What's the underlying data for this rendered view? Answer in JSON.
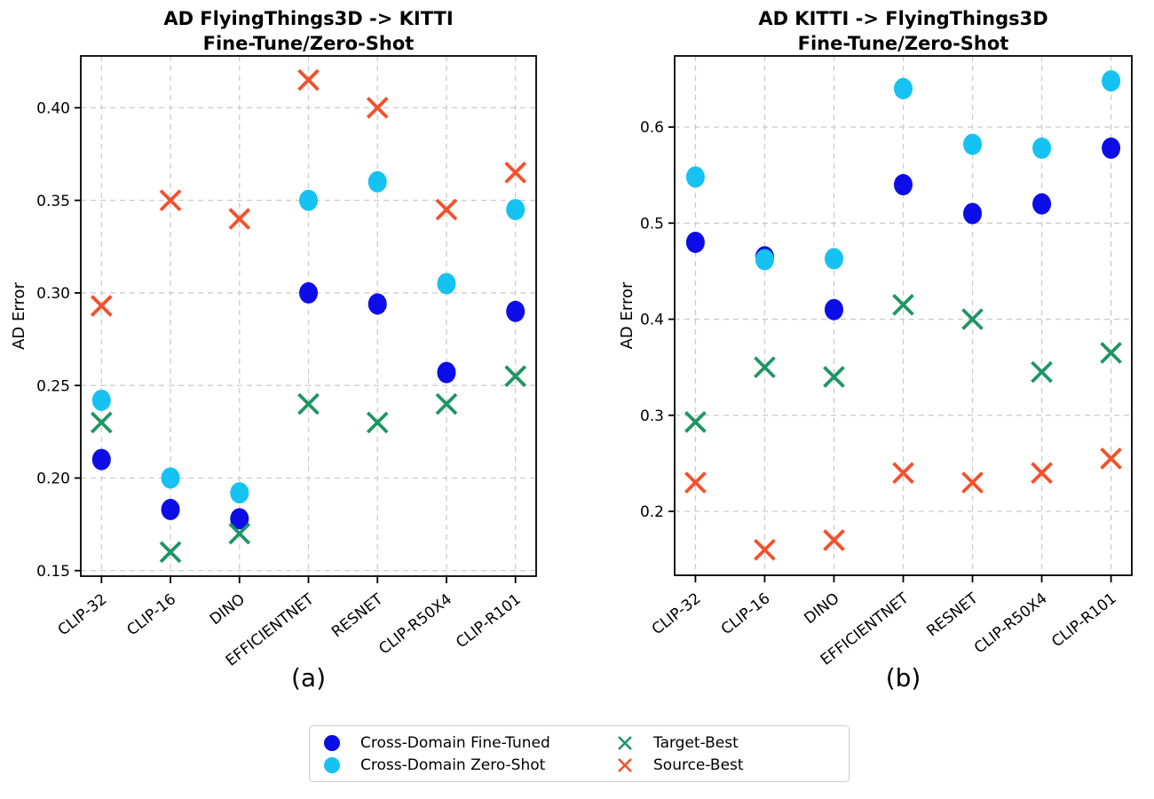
{
  "colors": {
    "fine_tuned": "#0d0de8",
    "zero_shot": "#16c2f2",
    "target_best": "#1e9566",
    "source_best": "#f3512b",
    "grid": "#cccccc",
    "spine": "#000000",
    "text": "#000000"
  },
  "legend": {
    "items": [
      {
        "label": "Cross-Domain Fine-Tuned",
        "marker": "circle",
        "color_key": "fine_tuned"
      },
      {
        "label": "Cross-Domain Zero-Shot",
        "marker": "circle",
        "color_key": "zero_shot"
      },
      {
        "label": "Target-Best",
        "marker": "x",
        "color_key": "target_best"
      },
      {
        "label": "Source-Best",
        "marker": "x",
        "color_key": "source_best"
      }
    ]
  },
  "chart_data": [
    {
      "type": "scatter",
      "title": "AD FlyingThings3D -> KITTI\nFine-Tune/Zero-Shot",
      "ylabel": "AD Error",
      "caption": "(a)",
      "grid": true,
      "categories": [
        "CLIP-32",
        "CLIP-16",
        "DINO",
        "EFFICIENTNET",
        "RESNET",
        "CLIP-R50X4",
        "CLIP-R101"
      ],
      "ylim": [
        0.147,
        0.428
      ],
      "yticks": [
        0.15,
        0.2,
        0.25,
        0.3,
        0.35,
        0.4
      ],
      "ytick_labels": [
        "0.15",
        "0.20",
        "0.25",
        "0.30",
        "0.35",
        "0.40"
      ],
      "series": [
        {
          "name": "Cross-Domain Fine-Tuned",
          "marker": "circle",
          "color_key": "fine_tuned",
          "values": [
            0.21,
            0.183,
            0.178,
            0.3,
            0.294,
            0.257,
            0.29
          ]
        },
        {
          "name": "Cross-Domain Zero-Shot",
          "marker": "circle",
          "color_key": "zero_shot",
          "values": [
            0.242,
            0.2,
            0.192,
            0.35,
            0.36,
            0.305,
            0.345
          ]
        },
        {
          "name": "Target-Best",
          "marker": "x",
          "color_key": "target_best",
          "values": [
            0.23,
            0.16,
            0.17,
            0.24,
            0.23,
            0.24,
            0.255
          ]
        },
        {
          "name": "Source-Best",
          "marker": "x",
          "color_key": "source_best",
          "values": [
            0.293,
            0.35,
            0.34,
            0.415,
            0.4,
            0.345,
            0.365
          ]
        }
      ]
    },
    {
      "type": "scatter",
      "title": "AD KITTI -> FlyingThings3D\nFine-Tune/Zero-Shot",
      "ylabel": "AD Error",
      "caption": "(b)",
      "grid": true,
      "categories": [
        "CLIP-32",
        "CLIP-16",
        "DINO",
        "EFFICIENTNET",
        "RESNET",
        "CLIP-R50X4",
        "CLIP-R101"
      ],
      "ylim": [
        0.1335,
        0.674
      ],
      "yticks": [
        0.2,
        0.3,
        0.4,
        0.5,
        0.6
      ],
      "ytick_labels": [
        "0.2",
        "0.3",
        "0.4",
        "0.5",
        "0.6"
      ],
      "series": [
        {
          "name": "Cross-Domain Fine-Tuned",
          "marker": "circle",
          "color_key": "fine_tuned",
          "values": [
            0.48,
            0.465,
            0.41,
            0.54,
            0.51,
            0.52,
            0.578
          ]
        },
        {
          "name": "Cross-Domain Zero-Shot",
          "marker": "circle",
          "color_key": "zero_shot",
          "values": [
            0.548,
            0.462,
            0.463,
            0.64,
            0.582,
            0.578,
            0.648
          ]
        },
        {
          "name": "Target-Best",
          "marker": "x",
          "color_key": "target_best",
          "values": [
            0.293,
            0.35,
            0.34,
            0.415,
            0.4,
            0.345,
            0.365
          ]
        },
        {
          "name": "Source-Best",
          "marker": "x",
          "color_key": "source_best",
          "values": [
            0.23,
            0.16,
            0.17,
            0.24,
            0.23,
            0.24,
            0.255
          ]
        }
      ]
    }
  ]
}
